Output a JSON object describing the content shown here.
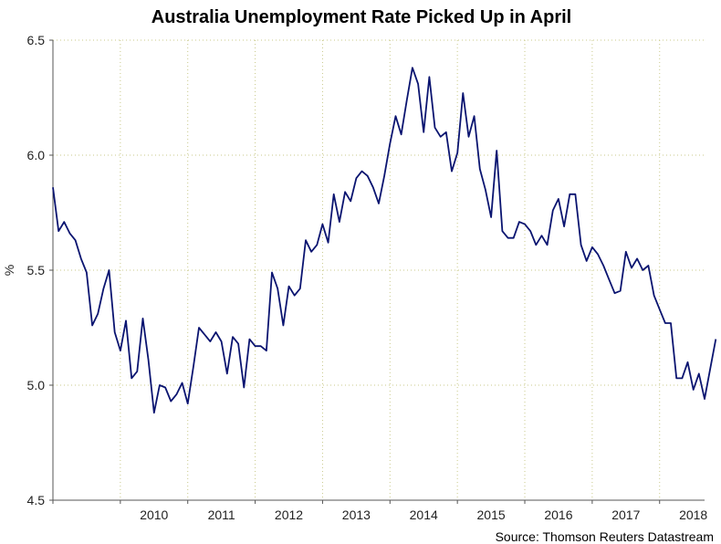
{
  "chart_data": {
    "type": "line",
    "title": "Australia Unemployment Rate Picked Up in April",
    "ylabel": "%",
    "xlabel": "",
    "ylim": [
      4.5,
      6.5
    ],
    "yticks": [
      "6.5",
      "6.0",
      "5.5",
      "5.0",
      "4.5"
    ],
    "ytick_values": [
      6.5,
      6.0,
      5.5,
      5.0,
      4.5
    ],
    "xticks": [
      "2010",
      "2011",
      "2012",
      "2013",
      "2014",
      "2015",
      "2016",
      "2017",
      "2018"
    ],
    "xlim": [
      2009.0,
      2018.667
    ],
    "grid": true,
    "line_color": "#0a1470",
    "series": [
      {
        "name": "Australia unemployment rate",
        "start": 2009.0,
        "step": 0.0833333,
        "values": [
          5.86,
          5.67,
          5.71,
          5.66,
          5.63,
          5.55,
          5.49,
          5.26,
          5.31,
          5.42,
          5.5,
          5.23,
          5.15,
          5.28,
          5.03,
          5.06,
          5.29,
          5.11,
          4.88,
          5.0,
          4.99,
          4.93,
          4.96,
          5.01,
          4.92,
          5.08,
          5.25,
          5.22,
          5.19,
          5.23,
          5.19,
          5.05,
          5.21,
          5.18,
          4.99,
          5.2,
          5.17,
          5.17,
          5.15,
          5.49,
          5.42,
          5.26,
          5.43,
          5.39,
          5.42,
          5.63,
          5.58,
          5.61,
          5.7,
          5.62,
          5.83,
          5.71,
          5.84,
          5.8,
          5.9,
          5.93,
          5.91,
          5.86,
          5.79,
          5.91,
          6.05,
          6.17,
          6.09,
          6.24,
          6.38,
          6.31,
          6.1,
          6.34,
          6.12,
          6.08,
          6.1,
          5.93,
          6.01,
          6.27,
          6.08,
          6.17,
          5.94,
          5.85,
          5.73,
          6.02,
          5.67,
          5.64,
          5.64,
          5.71,
          5.7,
          5.67,
          5.61,
          5.65,
          5.61,
          5.76,
          5.81,
          5.69,
          5.83,
          5.83,
          5.61,
          5.54,
          5.6,
          5.57,
          5.52,
          5.46,
          5.4,
          5.41,
          5.58,
          5.51,
          5.55,
          5.5,
          5.52,
          5.39,
          5.33,
          5.27,
          5.27,
          5.03,
          5.03,
          5.1,
          4.98,
          5.05,
          4.94,
          5.07,
          5.2
        ]
      }
    ],
    "source": "Source: Thomson Reuters Datastream"
  }
}
